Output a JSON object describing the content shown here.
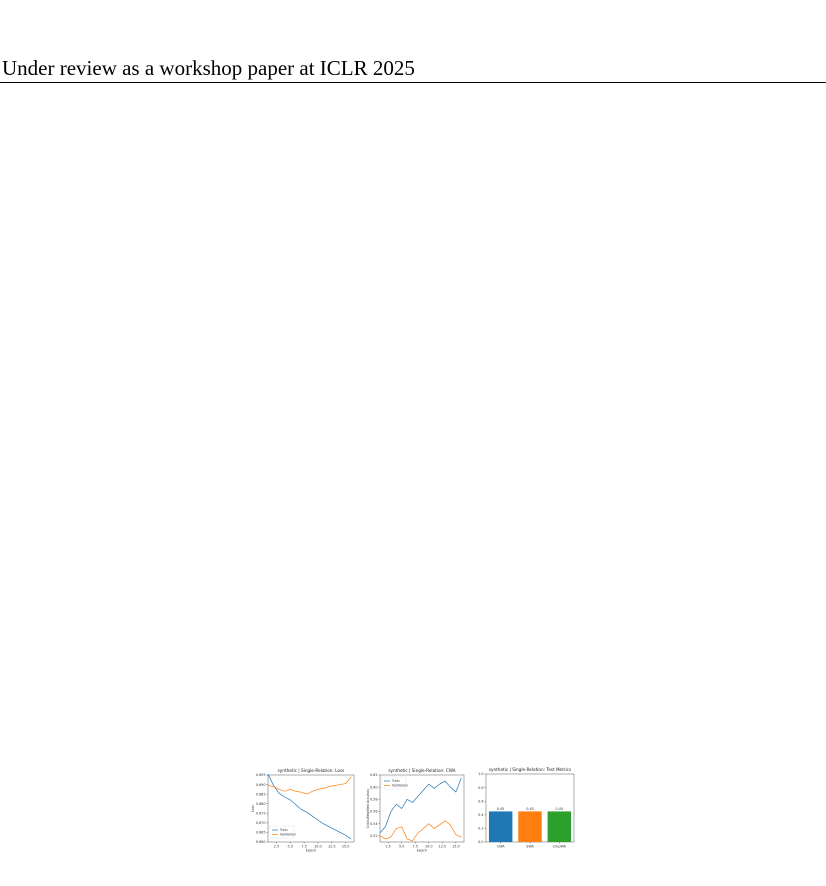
{
  "header": {
    "text": "Under review as a workshop paper at ICLR 2025"
  },
  "figures": [
    {
      "id": "loss",
      "chart_data": {
        "type": "line",
        "title": "synthetic | Single-Relation: Loss",
        "xlabel": "Epoch",
        "ylabel": "Loss",
        "xlim": [
          1,
          16.5
        ],
        "ylim": [
          0.66,
          0.695
        ],
        "xticks": [
          "2.5",
          "5.0",
          "7.5",
          "10.0",
          "12.5",
          "15.0"
        ],
        "yticks": [
          "0.660",
          "0.665",
          "0.670",
          "0.675",
          "0.680",
          "0.685",
          "0.690",
          "0.695"
        ],
        "x": [
          1,
          2,
          3,
          4,
          5,
          6,
          7,
          8,
          9,
          10,
          11,
          12,
          13,
          14,
          15,
          16
        ],
        "series": [
          {
            "name": "Train",
            "color": "#1f77b4",
            "values": [
              0.6955,
              0.6895,
              0.6855,
              0.6835,
              0.682,
              0.6795,
              0.677,
              0.6755,
              0.6735,
              0.6715,
              0.6695,
              0.668,
              0.6665,
              0.665,
              0.6635,
              0.6615
            ]
          },
          {
            "name": "Validation",
            "color": "#ff7f0e",
            "values": [
              0.6895,
              0.689,
              0.6875,
              0.6865,
              0.6875,
              0.6865,
              0.686,
              0.685,
              0.6865,
              0.6875,
              0.688,
              0.689,
              0.6895,
              0.69,
              0.6905,
              0.694
            ]
          }
        ],
        "legend": "lower-left"
      }
    },
    {
      "id": "cwa",
      "chart_data": {
        "type": "line",
        "title": "synthetic | Single-Relation: CWA",
        "xlabel": "Epoch",
        "ylabel": "Color-Weighted Accuracy",
        "xlim": [
          1,
          16.5
        ],
        "ylim": [
          0.51,
          0.62
        ],
        "xticks": [
          "2.5",
          "5.0",
          "7.5",
          "10.0",
          "12.5",
          "15.0"
        ],
        "yticks": [
          "0.52",
          "0.54",
          "0.56",
          "0.58",
          "0.60",
          "0.62"
        ],
        "x": [
          1,
          2,
          3,
          4,
          5,
          6,
          7,
          8,
          9,
          10,
          11,
          12,
          13,
          14,
          15,
          16
        ],
        "series": [
          {
            "name": "Train",
            "color": "#1f77b4",
            "values": [
              0.525,
              0.535,
              0.56,
              0.572,
              0.565,
              0.58,
              0.575,
              0.585,
              0.595,
              0.605,
              0.598,
              0.605,
              0.61,
              0.6,
              0.592,
              0.615
            ]
          },
          {
            "name": "Validation",
            "color": "#ff7f0e",
            "values": [
              0.52,
              0.515,
              0.518,
              0.532,
              0.535,
              0.515,
              0.512,
              0.525,
              0.532,
              0.54,
              0.532,
              0.538,
              0.545,
              0.538,
              0.522,
              0.518
            ]
          }
        ],
        "legend": "top-left"
      }
    },
    {
      "id": "test",
      "chart_data": {
        "type": "bar",
        "title": "synthetic | Single-Relation: Test Metrics",
        "categories": [
          "CWA",
          "SWA",
          "CmpWA"
        ],
        "values": [
          0.45,
          0.45,
          0.45
        ],
        "labels": [
          "0.45",
          "0.45",
          "0.45"
        ],
        "colors": [
          "#1f77b4",
          "#ff7f0e",
          "#2ca02c"
        ],
        "ylim": [
          0,
          1.0
        ],
        "yticks": [
          "0.0",
          "0.2",
          "0.4",
          "0.6",
          "0.8",
          "1.0"
        ]
      }
    }
  ]
}
